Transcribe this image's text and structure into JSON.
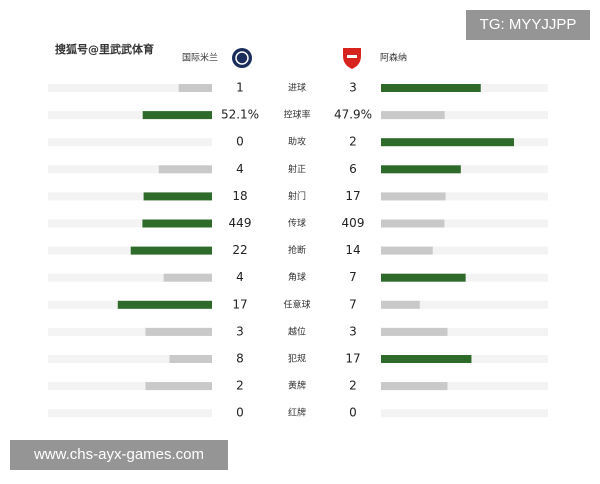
{
  "header": {
    "source": "搜狐号@里武武体育",
    "home_team": "国际米兰",
    "away_team": "阿森纳"
  },
  "rows": [
    {
      "label": "进球",
      "home": 1,
      "away": 3
    },
    {
      "label": "控球率",
      "home": 52.1,
      "away": 47.9,
      "home_label": "52.1%",
      "away_label": "47.9%"
    },
    {
      "label": "助攻",
      "home": 0,
      "away": 2
    },
    {
      "label": "射正",
      "home": 4,
      "away": 6
    },
    {
      "label": "射门",
      "home": 18,
      "away": 17
    },
    {
      "label": "传球",
      "home": 449,
      "away": 409
    },
    {
      "label": "抢断",
      "home": 22,
      "away": 14
    },
    {
      "label": "角球",
      "home": 4,
      "away": 7
    },
    {
      "label": "任意球",
      "home": 17,
      "away": 7
    },
    {
      "label": "越位",
      "home": 3,
      "away": 3
    },
    {
      "label": "犯规",
      "home": 8,
      "away": 17
    },
    {
      "label": "黄牌",
      "home": 2,
      "away": 2
    },
    {
      "label": "红牌",
      "home": 0,
      "away": 0
    }
  ],
  "watermarks": {
    "tg": "TG: MYYJJPP",
    "site": "www.chs-ayx-games.com"
  }
}
